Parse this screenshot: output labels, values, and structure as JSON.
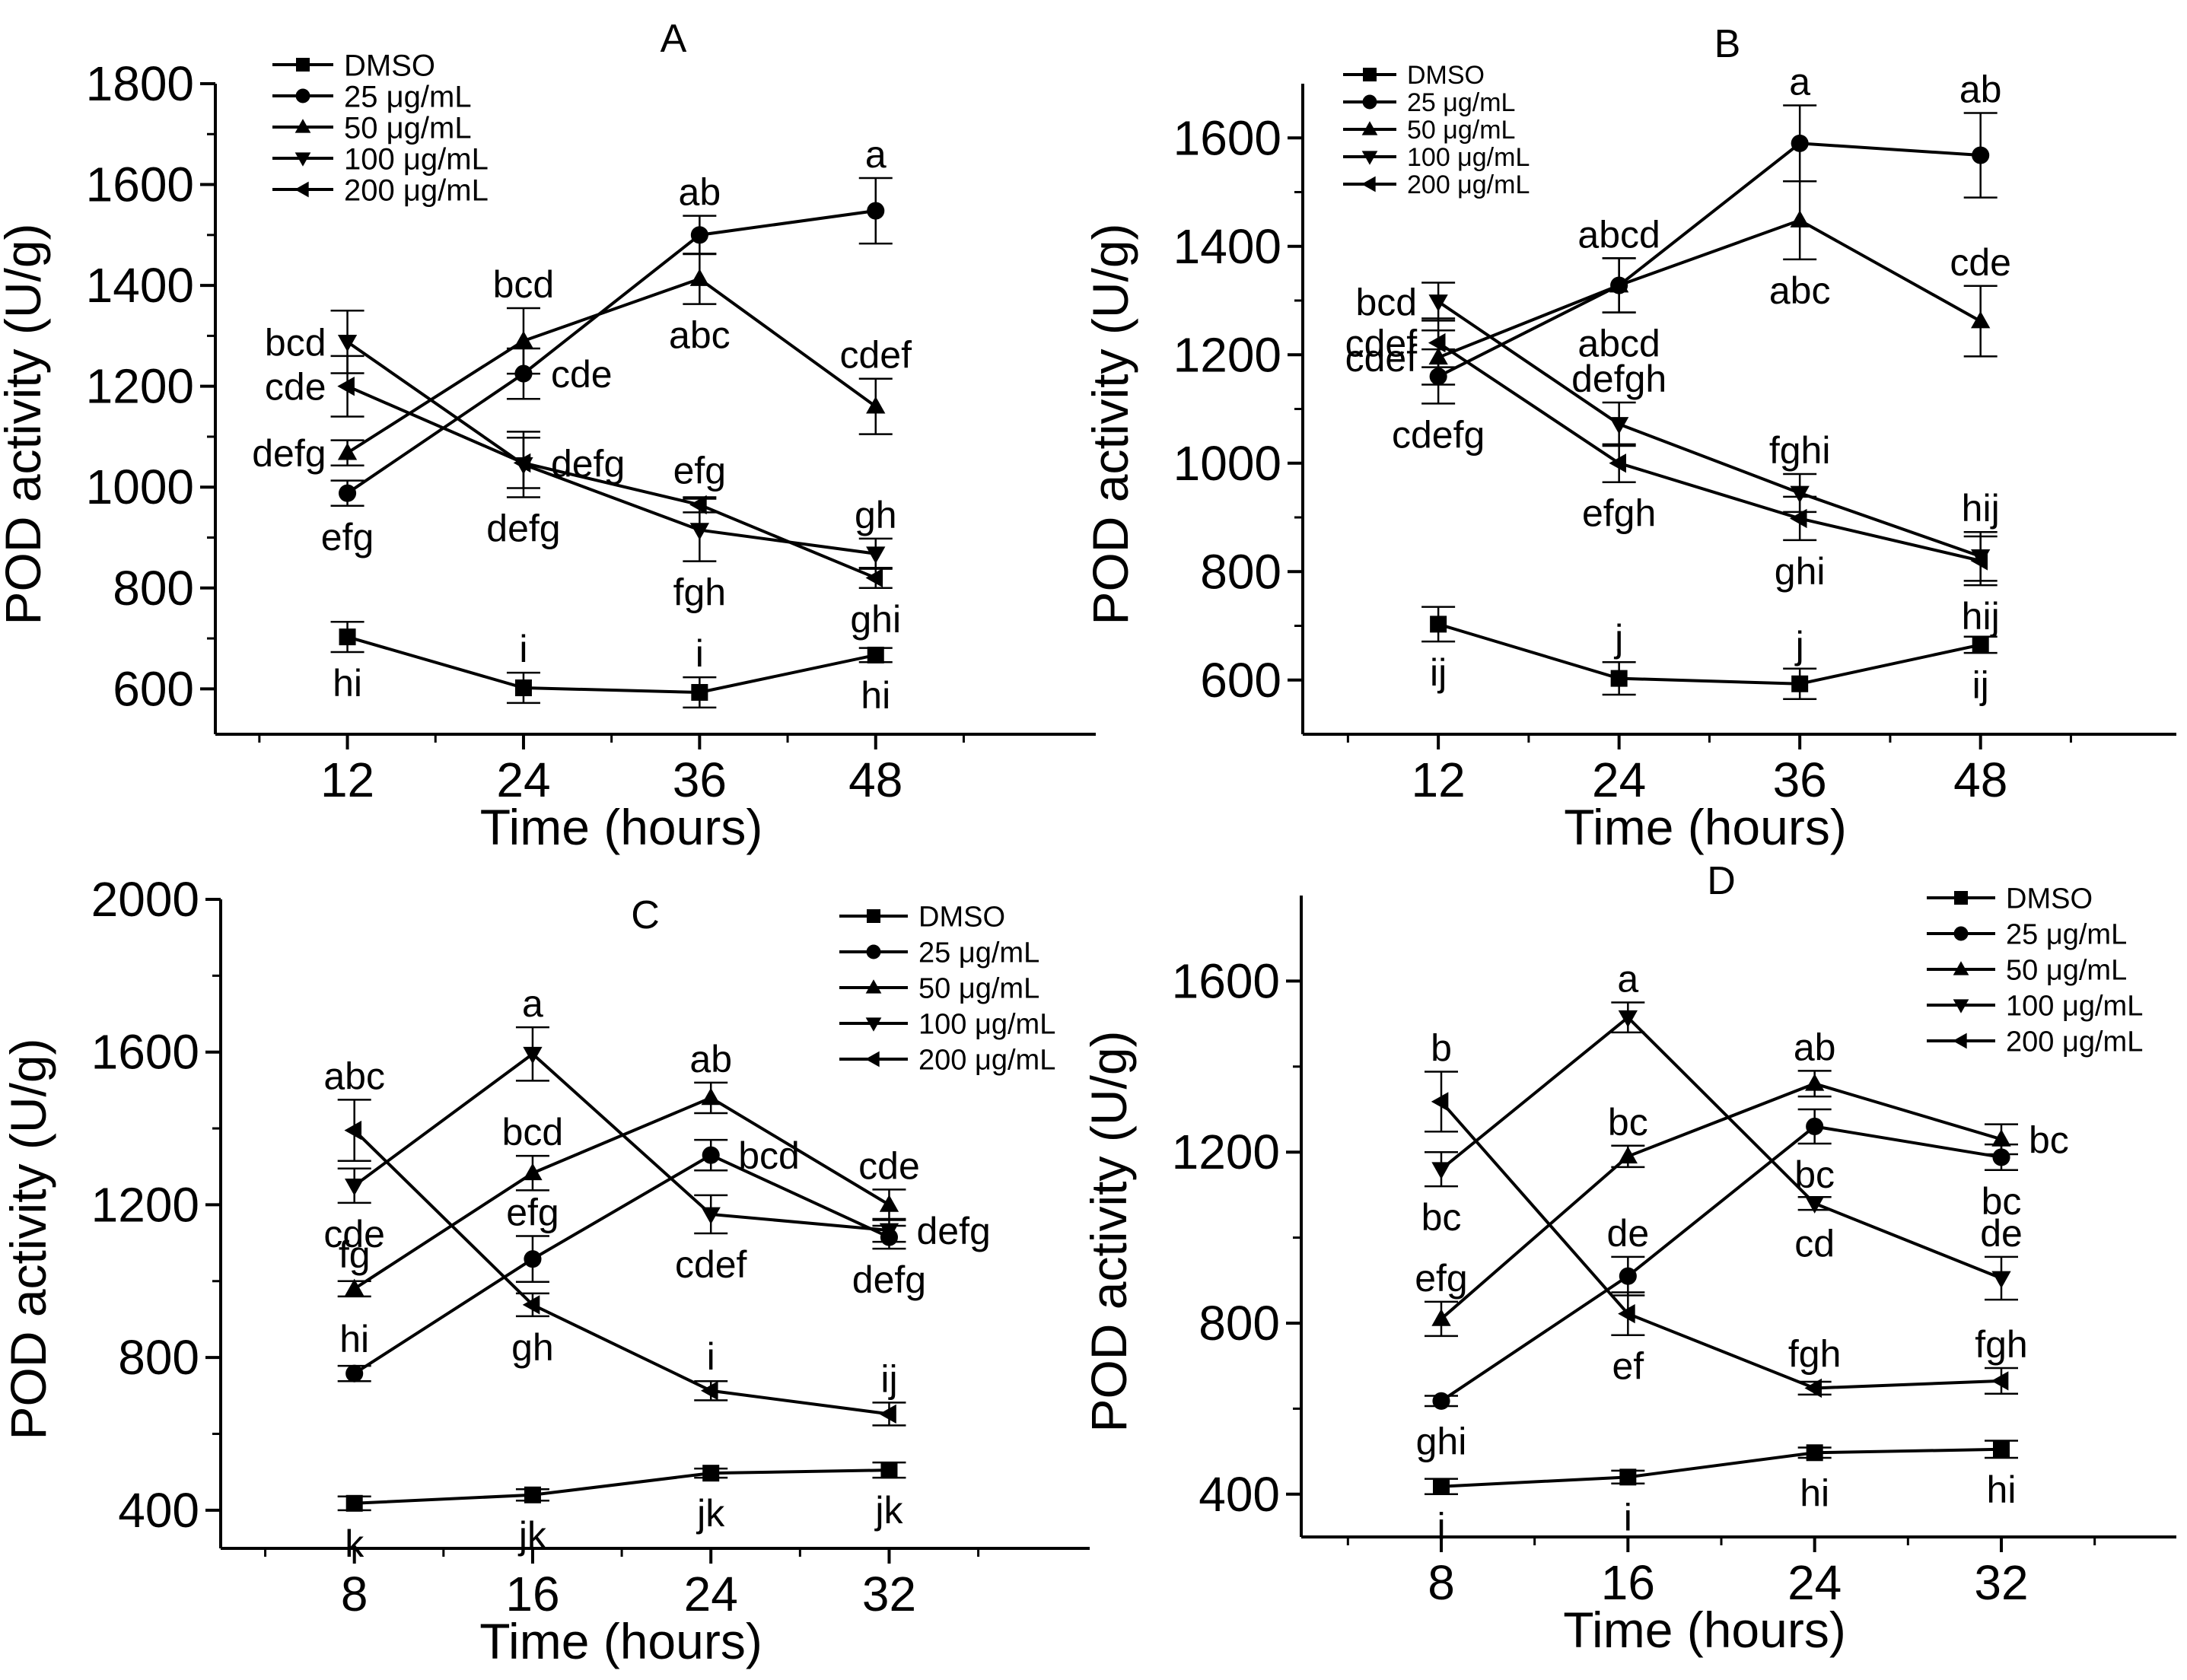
{
  "figure": {
    "units_symbol": "μg/mL"
  },
  "chart_data": [
    {
      "panel": "A",
      "type": "line",
      "title": "A",
      "xlabel": "Time (hours)",
      "ylabel": "POD activity (U/g)",
      "x": [
        12,
        24,
        36,
        48
      ],
      "x_ticks": [
        12,
        24,
        36,
        48
      ],
      "xlim": [
        3,
        63
      ],
      "y_ticks": [
        600,
        800,
        1000,
        1200,
        1400,
        1600,
        1800
      ],
      "ylim": [
        510,
        1800
      ],
      "legend": [
        "DMSO",
        "25  μg/mL",
        "50  μg/mL",
        "100 μg/mL",
        "200 μg/mL"
      ],
      "legend_position": "top-left",
      "series": [
        {
          "name": "DMSO",
          "marker": "square",
          "values": [
            703,
            602,
            593,
            667
          ],
          "errors": [
            30,
            30,
            30,
            14
          ],
          "labels": [
            {
              "text": "hi",
              "at": 0,
              "pos": "below"
            },
            {
              "text": "i",
              "at": 1,
              "pos": "above"
            },
            {
              "text": "i",
              "at": 2,
              "pos": "above"
            },
            {
              "text": "hi",
              "at": 3,
              "pos": "below"
            }
          ]
        },
        {
          "name": "25  μg/mL",
          "marker": "circle",
          "values": [
            988,
            1225,
            1500,
            1548
          ],
          "errors": [
            25,
            50,
            38,
            65
          ],
          "labels": [
            {
              "text": "efg",
              "at": 0,
              "pos": "below"
            },
            {
              "text": "cde",
              "at": 1,
              "pos": "right"
            },
            {
              "text": "ab",
              "at": 2,
              "pos": "above"
            },
            {
              "text": "a",
              "at": 3,
              "pos": "above"
            }
          ]
        },
        {
          "name": "50  μg/mL",
          "marker": "triangle-up",
          "values": [
            1068,
            1290,
            1413,
            1160
          ],
          "errors": [
            25,
            65,
            50,
            55
          ],
          "labels": [
            {
              "text": "defg",
              "at": 0,
              "pos": "left"
            },
            {
              "text": "bcd",
              "at": 1,
              "pos": "above"
            },
            {
              "text": "abc",
              "at": 2,
              "pos": "below"
            },
            {
              "text": "cdef",
              "at": 3,
              "pos": "above"
            }
          ]
        },
        {
          "name": "100 μg/mL",
          "marker": "triangle-down",
          "values": [
            1288,
            1045,
            915,
            868
          ],
          "errors": [
            62,
            65,
            62,
            30
          ],
          "labels": [
            {
              "text": "bcd",
              "at": 0,
              "pos": "left"
            },
            {
              "text": "defg",
              "at": 1,
              "pos": "below"
            },
            {
              "text": "fgh",
              "at": 2,
              "pos": "below"
            },
            {
              "text": "gh",
              "at": 3,
              "pos": "above"
            }
          ]
        },
        {
          "name": "200 μg/mL",
          "marker": "triangle-left",
          "values": [
            1200,
            1048,
            965,
            820
          ],
          "errors": [
            60,
            50,
            15,
            20
          ],
          "labels": [
            {
              "text": "cde",
              "at": 0,
              "pos": "left"
            },
            {
              "text": "defg",
              "at": 1,
              "pos": "right"
            },
            {
              "text": "efg",
              "at": 2,
              "pos": "above"
            },
            {
              "text": "ghi",
              "at": 3,
              "pos": "below"
            }
          ]
        }
      ]
    },
    {
      "panel": "B",
      "type": "line",
      "title": "B",
      "xlabel": "Time (hours)",
      "ylabel": "POD activity (U/g)",
      "x": [
        12,
        24,
        36,
        48
      ],
      "x_ticks": [
        12,
        24,
        36,
        48
      ],
      "xlim": [
        3,
        61
      ],
      "y_ticks": [
        600,
        800,
        1000,
        1200,
        1400,
        1600
      ],
      "ylim": [
        500,
        1700
      ],
      "legend": [
        "DMSO",
        "25  μg/mL",
        "50  μg/mL",
        "100 μg/mL",
        "200 μg/mL"
      ],
      "legend_position": "top-left",
      "series": [
        {
          "name": "DMSO",
          "marker": "square",
          "values": [
            703,
            603,
            593,
            665
          ],
          "errors": [
            32,
            30,
            28,
            15
          ],
          "labels": [
            {
              "text": "ij",
              "at": 0,
              "pos": "below"
            },
            {
              "text": "j",
              "at": 1,
              "pos": "above"
            },
            {
              "text": "j",
              "at": 2,
              "pos": "above"
            },
            {
              "text": "ij",
              "at": 3,
              "pos": "below"
            }
          ]
        },
        {
          "name": "25  μg/mL",
          "marker": "circle",
          "values": [
            1160,
            1328,
            1590,
            1568
          ],
          "errors": [
            50,
            50,
            70,
            78
          ],
          "labels": [
            {
              "text": "cdefg",
              "at": 0,
              "pos": "below"
            },
            {
              "text": "abcd",
              "at": 1,
              "pos": "above"
            },
            {
              "text": "a",
              "at": 2,
              "pos": "above"
            },
            {
              "text": "ab",
              "at": 3,
              "pos": "above"
            }
          ]
        },
        {
          "name": "50  μg/mL",
          "marker": "triangle-up",
          "values": [
            1195,
            1328,
            1448,
            1262
          ],
          "errors": [
            50,
            50,
            72,
            65
          ],
          "labels": [
            {
              "text": "cdef",
              "at": 0,
              "pos": "left"
            },
            {
              "text": "abcd",
              "at": 1,
              "pos": "below"
            },
            {
              "text": "abc",
              "at": 2,
              "pos": "below"
            },
            {
              "text": "cde",
              "at": 3,
              "pos": "above"
            }
          ]
        },
        {
          "name": "100 μg/mL",
          "marker": "triangle-down",
          "values": [
            1298,
            1072,
            945,
            828
          ],
          "errors": [
            35,
            40,
            35,
            45
          ],
          "labels": [
            {
              "text": "bcd",
              "at": 0,
              "pos": "left"
            },
            {
              "text": "defgh",
              "at": 1,
              "pos": "above"
            },
            {
              "text": "fghi",
              "at": 2,
              "pos": "above"
            },
            {
              "text": "hij",
              "at": 3,
              "pos": "above"
            }
          ]
        },
        {
          "name": "200 μg/mL",
          "marker": "triangle-left",
          "values": [
            1222,
            1000,
            898,
            820
          ],
          "errors": [
            45,
            35,
            40,
            45
          ],
          "labels": [
            {
              "text": "cdef",
              "at": 0,
              "pos": "left"
            },
            {
              "text": "efgh",
              "at": 1,
              "pos": "below"
            },
            {
              "text": "ghi",
              "at": 2,
              "pos": "below"
            },
            {
              "text": "hij",
              "at": 3,
              "pos": "below"
            }
          ]
        }
      ]
    },
    {
      "panel": "C",
      "type": "line",
      "title": "C",
      "xlabel": "Time (hours)",
      "ylabel": "POD activity (U/g)",
      "x": [
        8,
        16,
        24,
        32
      ],
      "x_ticks": [
        8,
        16,
        24,
        32
      ],
      "xlim": [
        2,
        41
      ],
      "y_ticks": [
        400,
        800,
        1200,
        1600,
        2000
      ],
      "ylim": [
        300,
        2000
      ],
      "legend": [
        "DMSO",
        "25  μg/mL",
        "50  μg/mL",
        "100 μg/mL",
        "200 μg/mL"
      ],
      "legend_position": "top-right",
      "series": [
        {
          "name": "DMSO",
          "marker": "square",
          "values": [
            418,
            440,
            497,
            505
          ],
          "errors": [
            18,
            15,
            12,
            20
          ],
          "labels": [
            {
              "text": "k",
              "at": 0,
              "pos": "below"
            },
            {
              "text": "jk",
              "at": 1,
              "pos": "below"
            },
            {
              "text": "jk",
              "at": 2,
              "pos": "below"
            },
            {
              "text": "jk",
              "at": 3,
              "pos": "below"
            }
          ]
        },
        {
          "name": "25  μg/mL",
          "marker": "circle",
          "values": [
            758,
            1058,
            1330,
            1115
          ],
          "errors": [
            20,
            60,
            40,
            30
          ],
          "labels": [
            {
              "text": "hi",
              "at": 0,
              "pos": "above"
            },
            {
              "text": "efg",
              "at": 1,
              "pos": "above"
            },
            {
              "text": "bcd",
              "at": 2,
              "pos": "right"
            },
            {
              "text": "defg",
              "at": 3,
              "pos": "below"
            }
          ]
        },
        {
          "name": "50  μg/mL",
          "marker": "triangle-up",
          "values": [
            980,
            1283,
            1480,
            1200
          ],
          "errors": [
            20,
            45,
            40,
            40
          ],
          "labels": [
            {
              "text": "fg",
              "at": 0,
              "pos": "above"
            },
            {
              "text": "bcd",
              "at": 1,
              "pos": "above"
            },
            {
              "text": "ab",
              "at": 2,
              "pos": "above"
            },
            {
              "text": "cde",
              "at": 3,
              "pos": "above"
            }
          ]
        },
        {
          "name": "100 μg/mL",
          "marker": "triangle-down",
          "values": [
            1250,
            1595,
            1175,
            1133
          ],
          "errors": [
            45,
            70,
            50,
            30
          ],
          "labels": [
            {
              "text": "cde",
              "at": 0,
              "pos": "below"
            },
            {
              "text": "a",
              "at": 1,
              "pos": "above"
            },
            {
              "text": "cdef",
              "at": 2,
              "pos": "below"
            },
            {
              "text": "defg",
              "at": 3,
              "pos": "right"
            }
          ]
        },
        {
          "name": "200 μg/mL",
          "marker": "triangle-left",
          "values": [
            1395,
            938,
            713,
            652
          ],
          "errors": [
            80,
            30,
            25,
            30
          ],
          "labels": [
            {
              "text": "abc",
              "at": 0,
              "pos": "above"
            },
            {
              "text": "gh",
              "at": 1,
              "pos": "below"
            },
            {
              "text": "i",
              "at": 2,
              "pos": "above"
            },
            {
              "text": "ij",
              "at": 3,
              "pos": "above"
            }
          ]
        }
      ]
    },
    {
      "panel": "D",
      "type": "line",
      "title": "D",
      "xlabel": "Time (hours)",
      "ylabel": "POD activity (U/g)",
      "x": [
        8,
        16,
        24,
        32
      ],
      "x_ticks": [
        8,
        16,
        24,
        32
      ],
      "xlim": [
        2,
        39.5
      ],
      "y_ticks": [
        400,
        800,
        1200,
        1600
      ],
      "ylim": [
        300,
        1800
      ],
      "legend": [
        "DMSO",
        "25  μg/mL",
        "50  μg/mL",
        "100 μg/mL",
        "200 μg/mL"
      ],
      "legend_position": "top-right",
      "series": [
        {
          "name": "DMSO",
          "marker": "square",
          "values": [
            418,
            440,
            497,
            505
          ],
          "errors": [
            18,
            15,
            12,
            20
          ],
          "labels": [
            {
              "text": "i",
              "at": 0,
              "pos": "below"
            },
            {
              "text": "i",
              "at": 1,
              "pos": "below"
            },
            {
              "text": "hi",
              "at": 2,
              "pos": "below"
            },
            {
              "text": "hi",
              "at": 3,
              "pos": "below"
            }
          ]
        },
        {
          "name": "25  μg/mL",
          "marker": "circle",
          "values": [
            618,
            910,
            1260,
            1188
          ],
          "errors": [
            12,
            45,
            40,
            30
          ],
          "labels": [
            {
              "text": "ghi",
              "at": 0,
              "pos": "below"
            },
            {
              "text": "de",
              "at": 1,
              "pos": "above"
            },
            {
              "text": "bc",
              "at": 2,
              "pos": "below"
            },
            {
              "text": "bc",
              "at": 3,
              "pos": "below"
            }
          ]
        },
        {
          "name": "50  μg/mL",
          "marker": "triangle-up",
          "values": [
            810,
            1190,
            1360,
            1230
          ],
          "errors": [
            40,
            25,
            30,
            35
          ],
          "labels": [
            {
              "text": "efg",
              "at": 0,
              "pos": "above"
            },
            {
              "text": "bc",
              "at": 1,
              "pos": "above"
            },
            {
              "text": "ab",
              "at": 2,
              "pos": "above"
            },
            {
              "text": "bc",
              "at": 3,
              "pos": "right"
            }
          ]
        },
        {
          "name": "100 μg/mL",
          "marker": "triangle-down",
          "values": [
            1160,
            1515,
            1080,
            905
          ],
          "errors": [
            40,
            35,
            15,
            50
          ],
          "labels": [
            {
              "text": "bc",
              "at": 0,
              "pos": "below"
            },
            {
              "text": "a",
              "at": 1,
              "pos": "above"
            },
            {
              "text": "cd",
              "at": 2,
              "pos": "below"
            },
            {
              "text": "de",
              "at": 3,
              "pos": "above"
            }
          ]
        },
        {
          "name": "200 μg/mL",
          "marker": "triangle-left",
          "values": [
            1318,
            822,
            648,
            665
          ],
          "errors": [
            70,
            50,
            15,
            30
          ],
          "labels": [
            {
              "text": "b",
              "at": 0,
              "pos": "above"
            },
            {
              "text": "ef",
              "at": 1,
              "pos": "below"
            },
            {
              "text": "fgh",
              "at": 2,
              "pos": "above"
            },
            {
              "text": "fgh",
              "at": 3,
              "pos": "above"
            }
          ]
        }
      ]
    }
  ]
}
